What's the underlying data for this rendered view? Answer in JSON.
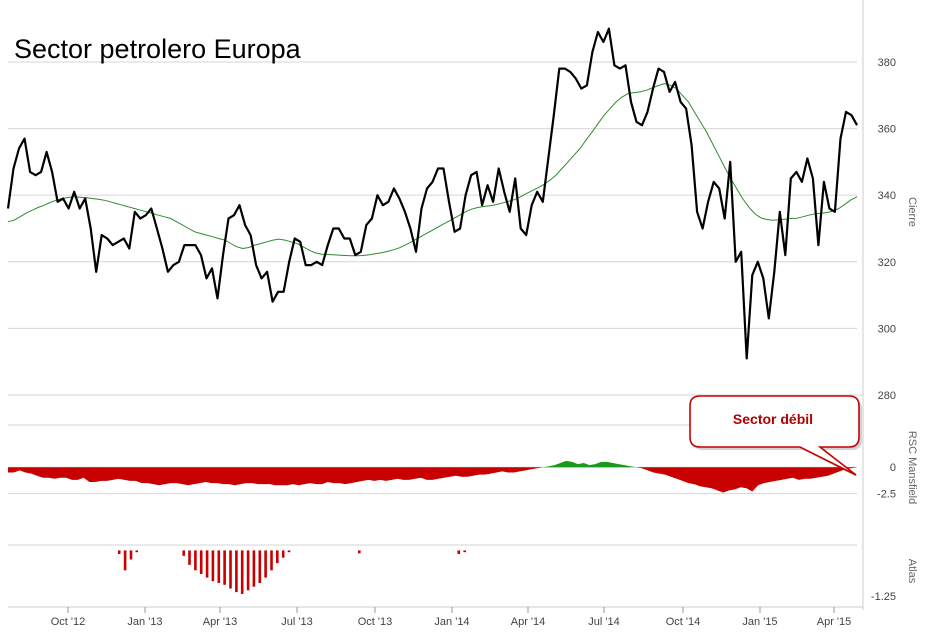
{
  "chart_data": {
    "type": "line",
    "title": "Sector petrolero Europa",
    "x_tick_labels": [
      "Oct '12",
      "Jan '13",
      "Apr '13",
      "Jul '13",
      "Oct '13",
      "Jan '14",
      "Apr '14",
      "Jul '14",
      "Oct '14",
      "Jan '15",
      "Apr '15"
    ],
    "panels": [
      {
        "name": "Cierre",
        "ylabel": "Cierre",
        "ylim": [
          280,
          395
        ],
        "yticks": [
          280,
          300,
          320,
          340,
          360,
          380
        ],
        "series": [
          {
            "name": "",
            "color": "#000000",
            "values": [
              336,
              348,
              354,
              357,
              347,
              346,
              347,
              353,
              347,
              338,
              339,
              336,
              341,
              336,
              339,
              330,
              317,
              328,
              327,
              325,
              326,
              327,
              324,
              335,
              333,
              334,
              336,
              330,
              324,
              317,
              319,
              320,
              325,
              325,
              325,
              322,
              315,
              318,
              309,
              322,
              333,
              334,
              337,
              331,
              328,
              319,
              315,
              317,
              308,
              311,
              311,
              320,
              327,
              326,
              319,
              319,
              320,
              319,
              325,
              330,
              330,
              327,
              327,
              322,
              323,
              331,
              333,
              340,
              337,
              338,
              342,
              339,
              335,
              330,
              323,
              336,
              342,
              344,
              348,
              348,
              338,
              329,
              330,
              340,
              346,
              347,
              337,
              343,
              338,
              348,
              341,
              335,
              345,
              330,
              328,
              337,
              341,
              338,
              351,
              364,
              378,
              378,
              377,
              375,
              372,
              373,
              383,
              389,
              386,
              390,
              379,
              378,
              379,
              368,
              362,
              361,
              365,
              372,
              378,
              377,
              371,
              374,
              368,
              366,
              355,
              335,
              330,
              338,
              344,
              342,
              333,
              350,
              320,
              323,
              291,
              316,
              320,
              315,
              303,
              317,
              335,
              322,
              345,
              347,
              344,
              351,
              345,
              325,
              344,
              336,
              335,
              357,
              365,
              364,
              361
            ]
          },
          {
            "name": "",
            "color": "#2e8b2e",
            "values": [
              332,
              332.5,
              333.5,
              334.6,
              335.5,
              336.3,
              337,
              337.8,
              338.5,
              339,
              339.3,
              339.5,
              339.4,
              339.2,
              339,
              338.8,
              338.5,
              338,
              337.5,
              337,
              336.5,
              336,
              335.5,
              335,
              334.5,
              334,
              333.5,
              333,
              332,
              331,
              330,
              329,
              328.5,
              328,
              327.5,
              327,
              326.5,
              325.5,
              324.5,
              324,
              324.3,
              325,
              325.5,
              326,
              326.5,
              326.8,
              326.5,
              326,
              325.5,
              324.5,
              323.5,
              322.7,
              322.3,
              322.2,
              322.1,
              322,
              321.9,
              321.8,
              321.8,
              321.9,
              322.1,
              322.4,
              322.7,
              323.1,
              323.6,
              324.2,
              325,
              326,
              327,
              328,
              329,
              330,
              331,
              332,
              333,
              334,
              335,
              335.8,
              336.3,
              336.6,
              336.8,
              337.1,
              337.6,
              338.1,
              338.6,
              339.4,
              340.4,
              341.3,
              342.2,
              343.2,
              344.5,
              346,
              348,
              350,
              352,
              354,
              356.5,
              359,
              361.5,
              364,
              366,
              368,
              369.5,
              370.5,
              370.8,
              371,
              371.5,
              372.2,
              372.9,
              373.5,
              373,
              372,
              370,
              368,
              365,
              362,
              359,
              355.5,
              352,
              348.5,
              345,
              342,
              339,
              336.5,
              334.5,
              333.2,
              332.7,
              332.5,
              332.6,
              332.8,
              333,
              333.1,
              333.5,
              334,
              334.4,
              334.6,
              334.8,
              335.2,
              336,
              337.3,
              338.6,
              339.5
            ]
          }
        ]
      },
      {
        "name": "RSC Mansfield",
        "ylabel": "RSC Mansfield",
        "yticks": [
          0,
          -2.5
        ],
        "ylim": [
          -5,
          4
        ],
        "series": [
          {
            "name": "",
            "type": "area",
            "color_positive": "#1a9a1a",
            "color_negative": "#c80000",
            "values": [
              -0.5,
              -0.5,
              -0.3,
              -0.5,
              -0.6,
              -0.8,
              -1,
              -1,
              -1.1,
              -1,
              -1,
              -1.2,
              -1.2,
              -1,
              -1.4,
              -1.4,
              -1.3,
              -1.3,
              -1.2,
              -1.1,
              -1.2,
              -1.3,
              -1.3,
              -1.5,
              -1.5,
              -1.6,
              -1.7,
              -1.6,
              -1.5,
              -1.5,
              -1.6,
              -1.7,
              -1.6,
              -1.5,
              -1.4,
              -1.5,
              -1.5,
              -1.6,
              -1.6,
              -1.7,
              -1.6,
              -1.5,
              -1.5,
              -1.6,
              -1.6,
              -1.6,
              -1.7,
              -1.7,
              -1.7,
              -1.6,
              -1.7,
              -1.6,
              -1.5,
              -1.6,
              -1.6,
              -1.4,
              -1.5,
              -1.5,
              -1.6,
              -1.5,
              -1.4,
              -1.3,
              -1.2,
              -1.3,
              -1.2,
              -1.3,
              -1.2,
              -1.1,
              -1.2,
              -1.2,
              -1.1,
              -1,
              -1.2,
              -1.2,
              -1.1,
              -1,
              -0.9,
              -0.8,
              -0.9,
              -0.9,
              -0.8,
              -0.7,
              -0.7,
              -0.6,
              -0.5,
              -0.4,
              -0.5,
              -0.5,
              -0.4,
              -0.3,
              -0.2,
              -0.1,
              0,
              0.1,
              0.2,
              0.4,
              0.6,
              0.5,
              0.3,
              0.4,
              0.2,
              0.3,
              0.5,
              0.5,
              0.4,
              0.3,
              0.2,
              0.1,
              0,
              -0.1,
              -0.3,
              -0.5,
              -0.6,
              -0.7,
              -0.9,
              -1.1,
              -1.3,
              -1.5,
              -1.6,
              -1.8,
              -1.9,
              -2,
              -2.2,
              -2.4,
              -2.2,
              -2.1,
              -1.9,
              -2,
              -2.3,
              -1.7,
              -1.5,
              -1.4,
              -1.3,
              -1.2,
              -1.1,
              -1,
              -1.2,
              -1.1,
              -1.1,
              -1,
              -0.9,
              -0.8,
              -0.6,
              -0.4,
              -0.2,
              -0.1,
              0
            ]
          }
        ]
      },
      {
        "name": "Atlas",
        "ylabel": "Atlas",
        "yticks": [
          -1.25
        ],
        "ylim": [
          -1.45,
          0.15
        ],
        "series": [
          {
            "name": "",
            "type": "bar",
            "color": "#c80000",
            "values": [
              0,
              0,
              0,
              0,
              0,
              0,
              0,
              0,
              0,
              0,
              0,
              0,
              0,
              0,
              0,
              0,
              0,
              0,
              0,
              -0.1,
              -0.55,
              -0.25,
              -0.05,
              0,
              0,
              0,
              0,
              0,
              0,
              0,
              -0.15,
              -0.4,
              -0.55,
              -0.65,
              -0.75,
              -0.85,
              -0.9,
              -0.95,
              -1.05,
              -1.15,
              -1.2,
              -1.1,
              -1.0,
              -0.9,
              -0.75,
              -0.55,
              -0.35,
              -0.2,
              -0.05,
              0,
              0,
              0,
              0,
              0,
              0,
              0,
              0,
              0,
              0,
              0,
              -0.08,
              0,
              0,
              0,
              0,
              0,
              0,
              0,
              0,
              0,
              0,
              0,
              0,
              0,
              0,
              0,
              0,
              -0.1,
              -0.05,
              0,
              0,
              0,
              0,
              0,
              0,
              0,
              0,
              0,
              0,
              0,
              0,
              0,
              0,
              0,
              0,
              0,
              0,
              0,
              0,
              0,
              0,
              0,
              0,
              0,
              0,
              0,
              0,
              0,
              0,
              0,
              0,
              0,
              0,
              0,
              0,
              0,
              0,
              0,
              0,
              0,
              0,
              0,
              0,
              0,
              0,
              0,
              0,
              0,
              0,
              0,
              0,
              0,
              0,
              0,
              0,
              0,
              0,
              0,
              0,
              0,
              0,
              0,
              0,
              0,
              0,
              0
            ]
          }
        ]
      }
    ],
    "annotations": [
      {
        "text": "Sector débil"
      }
    ]
  }
}
